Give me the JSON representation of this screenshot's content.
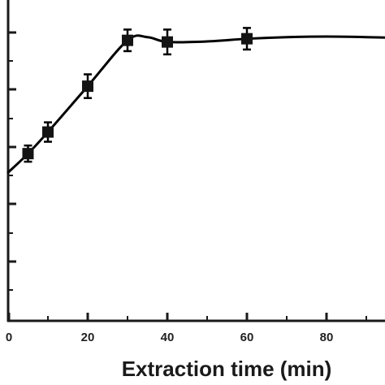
{
  "chart_data": {
    "type": "scatter",
    "title": "",
    "xlabel": "Extraction time (min)",
    "ylabel": "",
    "xlim": [
      0,
      100
    ],
    "ylim": [
      0,
      100
    ],
    "x_ticks": [
      0,
      20,
      40,
      60,
      80
    ],
    "y_tick_values": [
      0,
      10,
      20,
      30,
      40,
      50,
      60,
      70,
      80,
      90,
      100
    ],
    "series": [
      {
        "x": [
          5,
          10,
          20,
          30,
          40,
          60
        ],
        "y": [
          54.5,
          58.5,
          67.0,
          75.5,
          75.2,
          75.8
        ],
        "err": [
          1.5,
          1.8,
          2.2,
          2.0,
          2.3,
          2.0
        ],
        "marker": "square"
      }
    ],
    "fitted_curve": {
      "x": [
        0,
        5,
        10,
        20,
        30,
        35,
        40,
        50,
        60,
        70,
        80,
        90,
        100
      ],
      "y": [
        51,
        54.5,
        58.5,
        67.0,
        75.5,
        76.1,
        75.2,
        75.3,
        75.8,
        76.1,
        76.2,
        76.1,
        75.9
      ]
    },
    "grid": false,
    "legend": "none",
    "colors": {
      "line": "#000000",
      "marker": "#141414",
      "axis": "#1a1a1a"
    }
  }
}
